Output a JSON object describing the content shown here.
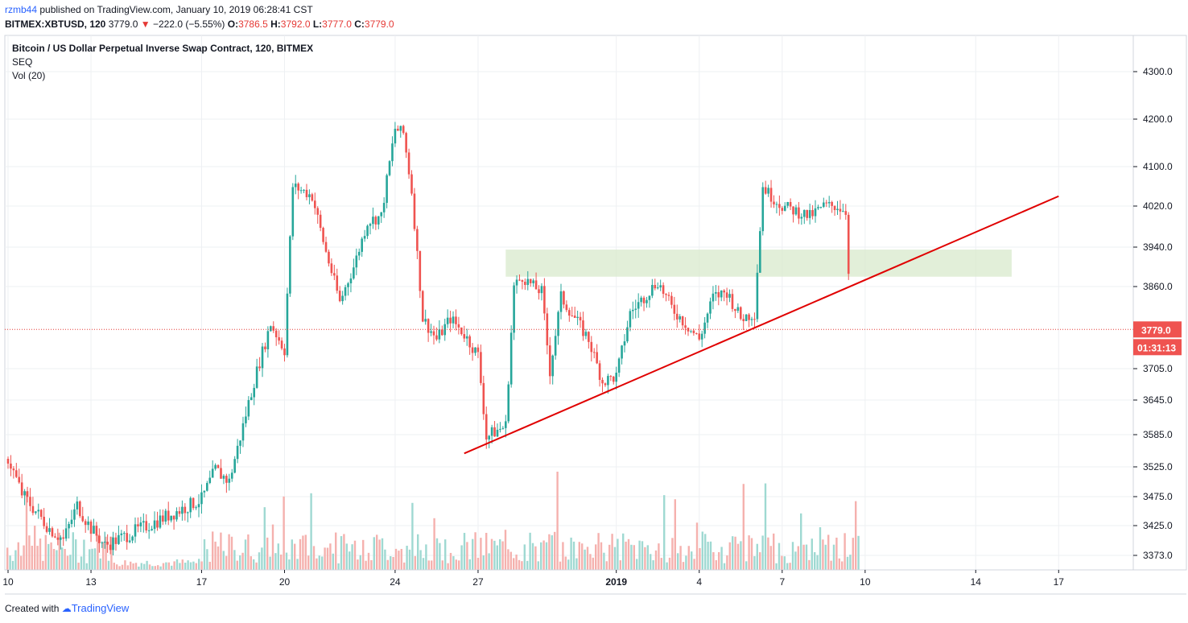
{
  "header": {
    "user": "rzmb44",
    "published": " published on TradingView.com, January 10, 2019 06:28:41 CST"
  },
  "ohlc": {
    "symbol": "BITMEX:XBTUSD, 120",
    "last": "3779.0",
    "change": "−222.0 (−5.55%)",
    "o_label": "O:",
    "o": "3786.5",
    "h_label": "H:",
    "h": "3792.0",
    "l_label": "L:",
    "l": "3777.0",
    "c_label": "C:",
    "c": "3779.0"
  },
  "legend": {
    "title": "Bitcoin / US Dollar Perpetual Inverse Swap Contract, 120, BITMEX",
    "indicator1": "SEQ",
    "indicator2": "Vol (20)"
  },
  "price_badge": {
    "value": "3779.0",
    "countdown": "01:31:13"
  },
  "footer": {
    "created_with": "Created with",
    "brand": "TradingView"
  },
  "colors": {
    "up": "#26a69a",
    "down": "#ef5350",
    "trendline": "#e00000",
    "zone": "#d8e9cc"
  },
  "chart_data": {
    "type": "candlestick",
    "y_ticks": [
      "4300.0",
      "4200.0",
      "4100.0",
      "4020.0",
      "3940.0",
      "3860.0",
      "3705.0",
      "3645.0",
      "3585.0",
      "3525.0",
      "3475.0",
      "3425.0",
      "3373.0"
    ],
    "y_tick_values": [
      4300,
      4200,
      4100,
      4020,
      3940,
      3860,
      3705,
      3645,
      3585,
      3525,
      3475,
      3425,
      3373
    ],
    "x_ticks": [
      {
        "label": "10",
        "day": 0
      },
      {
        "label": "13",
        "day": 3
      },
      {
        "label": "17",
        "day": 7
      },
      {
        "label": "20",
        "day": 10
      },
      {
        "label": "24",
        "day": 14
      },
      {
        "label": "27",
        "day": 17
      },
      {
        "label": "2019",
        "day": 22,
        "bold": true
      },
      {
        "label": "4",
        "day": 25
      },
      {
        "label": "7",
        "day": 28
      },
      {
        "label": "10",
        "day": 31
      },
      {
        "label": "14",
        "day": 35
      },
      {
        "label": "17",
        "day": 38
      }
    ],
    "x_tick_note": "Dec 10, 2018 = day 0",
    "candles_close": [
      [
        0,
        3540
      ],
      [
        0.5,
        3480
      ],
      [
        1,
        3450
      ],
      [
        1.5,
        3420
      ],
      [
        2,
        3400
      ],
      [
        2.5,
        3460
      ],
      [
        3,
        3420
      ],
      [
        3.5,
        3390
      ],
      [
        7,
        3470
      ],
      [
        7.5,
        3520
      ],
      [
        8,
        3500
      ],
      [
        8.5,
        3600
      ],
      [
        9,
        3700
      ],
      [
        9.5,
        3790
      ],
      [
        10,
        3740
      ],
      [
        10.3,
        4060
      ],
      [
        10.7,
        4050
      ],
      [
        11,
        4040
      ],
      [
        11.5,
        3930
      ],
      [
        12,
        3830
      ],
      [
        12.5,
        3900
      ],
      [
        13,
        3990
      ],
      [
        13.5,
        4000
      ],
      [
        14,
        4180
      ],
      [
        14.3,
        4170
      ],
      [
        14.6,
        4050
      ],
      [
        15,
        3800
      ],
      [
        15.5,
        3760
      ],
      [
        16,
        3800
      ],
      [
        16.5,
        3770
      ],
      [
        17,
        3730
      ],
      [
        17.3,
        3580
      ],
      [
        17.6,
        3590
      ],
      [
        18,
        3600
      ],
      [
        18.3,
        3860
      ],
      [
        18.6,
        3880
      ],
      [
        19,
        3860
      ],
      [
        19.3,
        3850
      ],
      [
        19.6,
        3700
      ],
      [
        20,
        3840
      ],
      [
        20.5,
        3800
      ],
      [
        21,
        3760
      ],
      [
        21.5,
        3680
      ],
      [
        22,
        3690
      ],
      [
        22.5,
        3810
      ],
      [
        23,
        3840
      ],
      [
        23.5,
        3870
      ],
      [
        24,
        3820
      ],
      [
        24.5,
        3790
      ],
      [
        25,
        3760
      ],
      [
        25.5,
        3840
      ],
      [
        26,
        3850
      ],
      [
        26.5,
        3800
      ],
      [
        27,
        3810
      ],
      [
        27.3,
        4060
      ],
      [
        27.6,
        4040
      ],
      [
        28,
        4020
      ],
      [
        28.5,
        4010
      ],
      [
        29,
        4000
      ],
      [
        29.5,
        4020
      ],
      [
        30,
        4020
      ],
      [
        30.3,
        4010
      ],
      [
        30.5,
        3780
      ]
    ],
    "trendline": {
      "start": {
        "day": 16.5,
        "price": 3550
      },
      "end": {
        "day": 38,
        "price": 4040
      }
    },
    "zone": {
      "day_from": 18,
      "day_to": 36.3,
      "price_from": 3880,
      "price_to": 3935
    },
    "last_price": 3779.0
  }
}
